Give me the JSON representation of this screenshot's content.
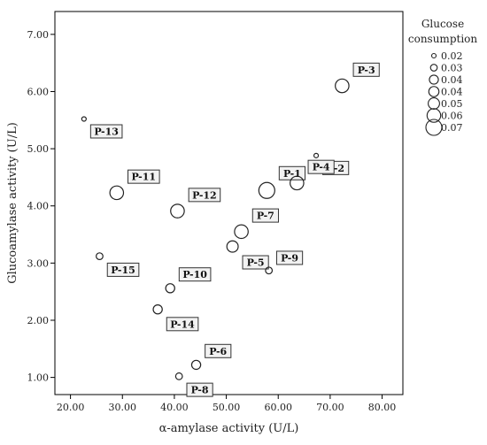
{
  "chart_data": {
    "type": "scatter",
    "xlabel": "α-amylase activity (U/L)",
    "ylabel": "Glucoamylase activity (U/L)",
    "xlim": [
      17,
      84
    ],
    "ylim": [
      0.7,
      7.4
    ],
    "xticks": [
      "20.00",
      "30.00",
      "40.00",
      "50.00",
      "60.00",
      "70.00",
      "80.00"
    ],
    "yticks": [
      "1.00",
      "2.00",
      "3.00",
      "4.00",
      "5.00",
      "6.00",
      "7.00"
    ],
    "xtick_values": [
      20,
      30,
      40,
      50,
      60,
      70,
      80
    ],
    "ytick_values": [
      1,
      2,
      3,
      4,
      5,
      6,
      7
    ],
    "grid": false,
    "legend": {
      "title_line1": "Glucose",
      "title_line2": "consumption",
      "placement": "right",
      "labels": [
        "0.02",
        "0.03",
        "0.04",
        "0.04",
        "0.05",
        "0.06",
        "0.07"
      ],
      "sizes": [
        0.02,
        0.03,
        0.04,
        0.045,
        0.05,
        0.06,
        0.07
      ]
    },
    "points": [
      {
        "label": "P-1",
        "x": 57.8,
        "y": 4.27,
        "size": 0.07,
        "label_pos": "above-right"
      },
      {
        "label": "P-2",
        "x": 67.3,
        "y": 4.88,
        "size": 0.02,
        "label_pos": "below-right"
      },
      {
        "label": "P-3",
        "x": 72.3,
        "y": 6.1,
        "size": 0.06,
        "label_pos": "above-right"
      },
      {
        "label": "P-4",
        "x": 63.6,
        "y": 4.4,
        "size": 0.06,
        "label_pos": "above-right"
      },
      {
        "label": "P-5",
        "x": 51.2,
        "y": 3.29,
        "size": 0.05,
        "label_pos": "below-right"
      },
      {
        "label": "P-6",
        "x": 44.2,
        "y": 1.22,
        "size": 0.04,
        "label_pos": "above-right"
      },
      {
        "label": "P-7",
        "x": 52.9,
        "y": 3.55,
        "size": 0.06,
        "label_pos": "above-right"
      },
      {
        "label": "P-8",
        "x": 40.9,
        "y": 1.02,
        "size": 0.03,
        "label_pos": "below-right"
      },
      {
        "label": "P-9",
        "x": 58.2,
        "y": 2.87,
        "size": 0.03,
        "label_pos": "above-right"
      },
      {
        "label": "P-10",
        "x": 39.2,
        "y": 2.56,
        "size": 0.04,
        "label_pos": "above-right"
      },
      {
        "label": "P-11",
        "x": 28.9,
        "y": 4.23,
        "size": 0.06,
        "label_pos": "above-right"
      },
      {
        "label": "P-12",
        "x": 40.6,
        "y": 3.91,
        "size": 0.06,
        "label_pos": "above-right"
      },
      {
        "label": "P-13",
        "x": 22.6,
        "y": 5.52,
        "size": 0.02,
        "label_pos": "below-right"
      },
      {
        "label": "P-14",
        "x": 36.8,
        "y": 2.19,
        "size": 0.04,
        "label_pos": "below-right"
      },
      {
        "label": "P-15",
        "x": 25.6,
        "y": 3.12,
        "size": 0.03,
        "label_pos": "below-right"
      }
    ]
  }
}
